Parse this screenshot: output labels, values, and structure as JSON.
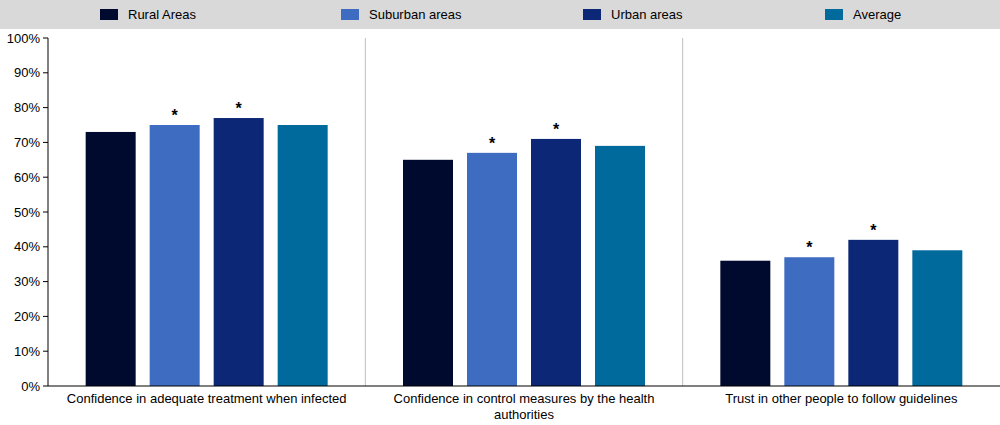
{
  "chart_data": {
    "type": "bar",
    "categories": [
      "Confidence in adequate treatment when infected",
      "Confidence in control measures by the health authorities",
      "Trust in other people to follow guidelines"
    ],
    "series": [
      {
        "name": "Rural Areas",
        "color": "#000a2e",
        "values": [
          73,
          65,
          36
        ]
      },
      {
        "name": "Suburban areas",
        "color": "#3d6cc0",
        "values": [
          75,
          67,
          37
        ]
      },
      {
        "name": "Urban areas",
        "color": "#0b2775",
        "values": [
          77,
          71,
          42
        ]
      },
      {
        "name": "Average",
        "color": "#006a9c",
        "values": [
          75,
          69,
          39
        ]
      }
    ],
    "ylim": [
      0,
      100
    ],
    "yticks": [
      {
        "value": 0,
        "label": "0%"
      },
      {
        "value": 10,
        "label": "10%"
      },
      {
        "value": 20,
        "label": "20%"
      },
      {
        "value": 30,
        "label": "30%"
      },
      {
        "value": 40,
        "label": "40%"
      },
      {
        "value": 50,
        "label": "50%"
      },
      {
        "value": 60,
        "label": "60%"
      },
      {
        "value": 70,
        "label": "70%"
      },
      {
        "value": 80,
        "label": "80%"
      },
      {
        "value": 90,
        "label": "90%"
      },
      {
        "value": 100,
        "label": "100%"
      }
    ],
    "grid": false,
    "legend": "top",
    "annotations": [
      {
        "text": "*",
        "series": 1,
        "category": 0
      },
      {
        "text": "*",
        "series": 2,
        "category": 0
      },
      {
        "text": "*",
        "series": 1,
        "category": 1
      },
      {
        "text": "*",
        "series": 2,
        "category": 1
      },
      {
        "text": "*",
        "series": 1,
        "category": 2
      },
      {
        "text": "*",
        "series": 2,
        "category": 2
      }
    ]
  }
}
